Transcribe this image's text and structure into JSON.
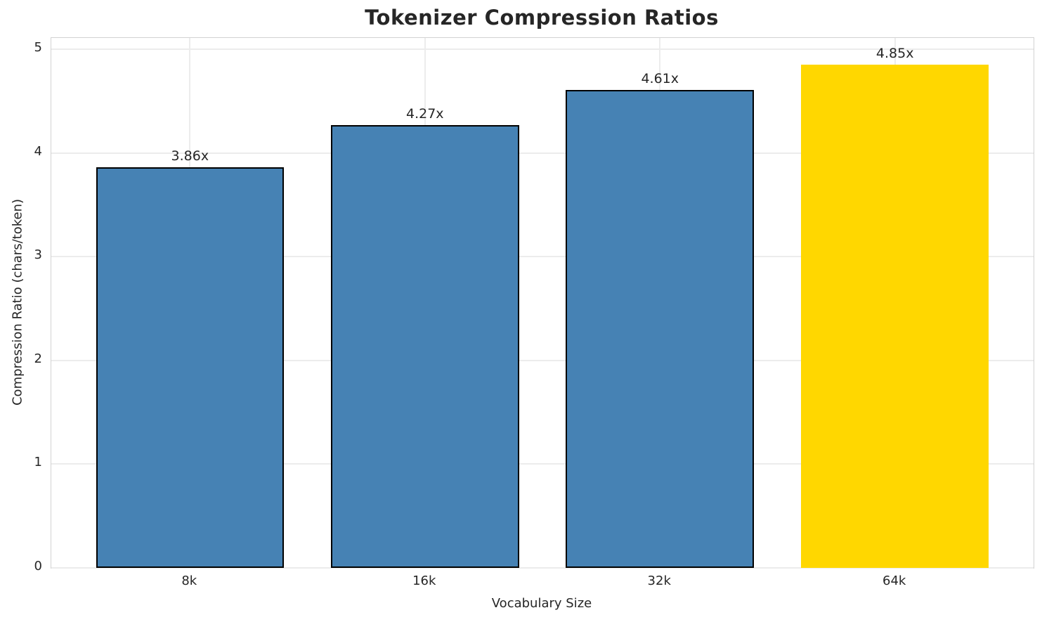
{
  "chart_data": {
    "type": "bar",
    "title": "Tokenizer Compression Ratios",
    "xlabel": "Vocabulary Size",
    "ylabel": "Compression Ratio (chars/token)",
    "categories": [
      "8k",
      "16k",
      "32k",
      "64k"
    ],
    "values": [
      3.86,
      4.27,
      4.61,
      4.85
    ],
    "bar_labels": [
      "3.86x",
      "4.27x",
      "4.61x",
      "4.85x"
    ],
    "series": [
      {
        "name": "Compression Ratio",
        "values": [
          3.86,
          4.27,
          4.61,
          4.85
        ]
      }
    ],
    "highlight_index": 3,
    "ylim": [
      0,
      5.11
    ],
    "yticks": [
      "0",
      "1",
      "2",
      "3",
      "4",
      "5"
    ],
    "grid": true,
    "legend_position": "none",
    "colors": {
      "bar_default": "#4682B4",
      "bar_highlight": "#FFD700",
      "bar_edge": "#000000",
      "grid": "#ececec",
      "spine": "#d2d2d2",
      "text": "#262626",
      "background": "#ffffff"
    },
    "bar_colors": [
      "#4682B4",
      "#4682B4",
      "#4682B4",
      "#FFD700"
    ],
    "bar_edge_colors": [
      "#000000",
      "#000000",
      "#000000",
      "none"
    ]
  }
}
